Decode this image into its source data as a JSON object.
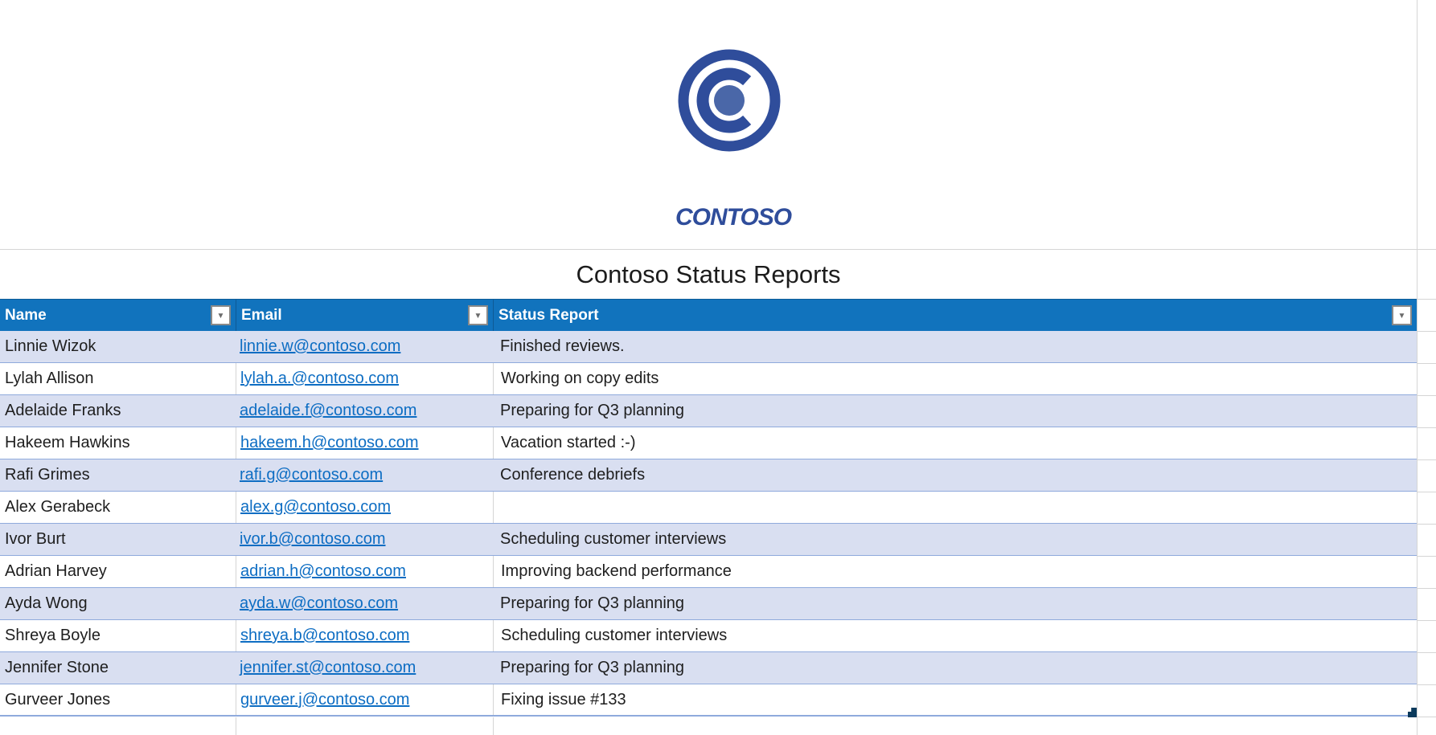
{
  "logo": {
    "text": "CONTOSO",
    "color": "#2F4D9B",
    "inner_dot_color": "#4A67A8"
  },
  "title": "Contoso Status Reports",
  "icons": {
    "filter_dropdown": "▼"
  },
  "colors": {
    "header_bg": "#1173BD",
    "band": "#D9DFF1",
    "row_border": "#8FAADC",
    "link": "#0D6DC3",
    "gridline": "#D5D5D5",
    "handle": "#0A3A5C",
    "logo": "#2F4D9B"
  },
  "table": {
    "headers": [
      {
        "label": "Name"
      },
      {
        "label": "Email"
      },
      {
        "label": "Status Report"
      }
    ],
    "rows": [
      {
        "name": "Linnie Wizok",
        "email": "linnie.w@contoso.com",
        "status": "Finished reviews."
      },
      {
        "name": "Lylah Allison",
        "email": "lylah.a.@contoso.com",
        "status": "Working on copy edits"
      },
      {
        "name": "Adelaide Franks",
        "email": "adelaide.f@contoso.com",
        "status": "Preparing for Q3 planning"
      },
      {
        "name": "Hakeem Hawkins",
        "email": "hakeem.h@contoso.com",
        "status": "Vacation started :-)"
      },
      {
        "name": "Rafi Grimes",
        "email": "rafi.g@contoso.com",
        "status": "Conference debriefs"
      },
      {
        "name": "Alex Gerabeck",
        "email": "alex.g@contoso.com",
        "status": ""
      },
      {
        "name": "Ivor Burt",
        "email": "ivor.b@contoso.com",
        "status": "Scheduling customer interviews"
      },
      {
        "name": "Adrian Harvey",
        "email": "adrian.h@contoso.com",
        "status": "Improving backend performance"
      },
      {
        "name": "Ayda Wong",
        "email": "ayda.w@contoso.com",
        "status": "Preparing for Q3 planning"
      },
      {
        "name": "Shreya Boyle",
        "email": "shreya.b@contoso.com",
        "status": "Scheduling customer interviews"
      },
      {
        "name": "Jennifer Stone",
        "email": "jennifer.st@contoso.com",
        "status": "Preparing for Q3 planning"
      },
      {
        "name": "Gurveer Jones",
        "email": "gurveer.j@contoso.com",
        "status": "Fixing issue #133"
      }
    ]
  }
}
